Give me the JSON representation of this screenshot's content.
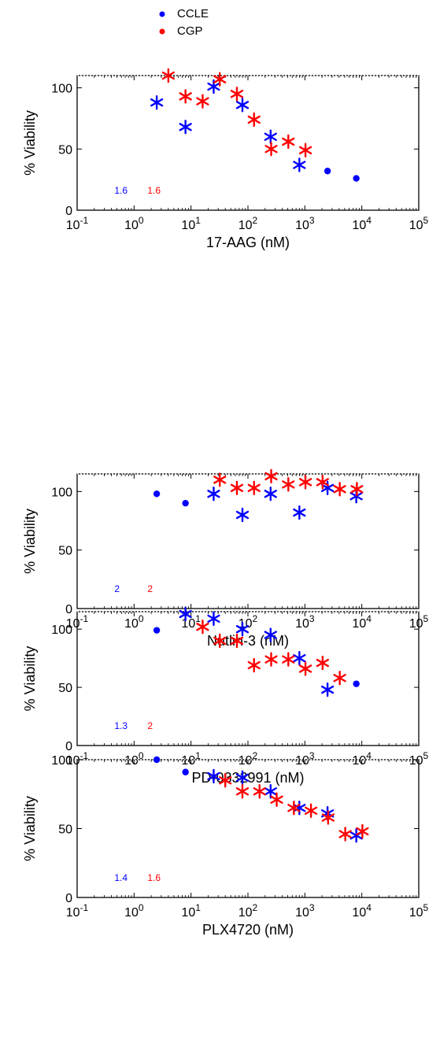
{
  "legend": {
    "placement": "top-left",
    "entries": [
      {
        "label": "CCLE",
        "color": "#0000ff"
      },
      {
        "label": "CGP",
        "color": "#ff0000"
      }
    ]
  },
  "chart_data": [
    {
      "type": "scatter",
      "xlabel": "17-AAG (nM)",
      "ylabel": "% Viability",
      "xscale": "log",
      "xlim": [
        0.1,
        100000
      ],
      "ylim": [
        0,
        110
      ],
      "xticks": [
        "10^-1",
        "10^0",
        "10^1",
        "10^2",
        "10^3",
        "10^4",
        "10^5"
      ],
      "yticks": [
        0,
        50,
        100
      ],
      "annotations": [
        {
          "text": "1.6",
          "color": "#0000ff"
        },
        {
          "text": "1.6",
          "color": "#ff0000"
        }
      ],
      "series": [
        {
          "name": "CCLE",
          "color": "#0000ff",
          "points": [
            {
              "x": 2.5,
              "y": 88,
              "marker": "star"
            },
            {
              "x": 8,
              "y": 68,
              "marker": "star"
            },
            {
              "x": 25,
              "y": 101,
              "marker": "star"
            },
            {
              "x": 80,
              "y": 86,
              "marker": "star"
            },
            {
              "x": 250,
              "y": 60,
              "marker": "star"
            },
            {
              "x": 800,
              "y": 37,
              "marker": "star"
            },
            {
              "x": 2500,
              "y": 32,
              "marker": "dot"
            },
            {
              "x": 8000,
              "y": 26,
              "marker": "dot"
            }
          ]
        },
        {
          "name": "CGP",
          "color": "#ff0000",
          "points": [
            {
              "x": 4,
              "y": 110,
              "marker": "star"
            },
            {
              "x": 8,
              "y": 93,
              "marker": "star"
            },
            {
              "x": 16,
              "y": 89,
              "marker": "star"
            },
            {
              "x": 32,
              "y": 107,
              "marker": "star"
            },
            {
              "x": 64,
              "y": 95,
              "marker": "star"
            },
            {
              "x": 128,
              "y": 74,
              "marker": "star"
            },
            {
              "x": 256,
              "y": 50,
              "marker": "star"
            },
            {
              "x": 512,
              "y": 56,
              "marker": "star"
            },
            {
              "x": 1024,
              "y": 49,
              "marker": "star"
            }
          ]
        }
      ]
    },
    {
      "type": "scatter",
      "xlabel": "Nutlin-3 (nM)",
      "ylabel": "% Viability",
      "xscale": "log",
      "xlim": [
        0.1,
        100000
      ],
      "ylim": [
        0,
        115
      ],
      "xticks": [
        "10^-1",
        "10^0",
        "10^1",
        "10^2",
        "10^3",
        "10^4",
        "10^5"
      ],
      "yticks": [
        0,
        50,
        100
      ],
      "annotations": [
        {
          "text": "2",
          "color": "#0000ff"
        },
        {
          "text": "2",
          "color": "#ff0000"
        }
      ],
      "series": [
        {
          "name": "CCLE",
          "color": "#0000ff",
          "points": [
            {
              "x": 2.5,
              "y": 98,
              "marker": "dot"
            },
            {
              "x": 8,
              "y": 90,
              "marker": "dot"
            },
            {
              "x": 25,
              "y": 98,
              "marker": "star"
            },
            {
              "x": 80,
              "y": 80,
              "marker": "star"
            },
            {
              "x": 250,
              "y": 98,
              "marker": "star"
            },
            {
              "x": 800,
              "y": 82,
              "marker": "star"
            },
            {
              "x": 2500,
              "y": 103,
              "marker": "star"
            },
            {
              "x": 8000,
              "y": 96,
              "marker": "star"
            }
          ]
        },
        {
          "name": "CGP",
          "color": "#ff0000",
          "points": [
            {
              "x": 32,
              "y": 110,
              "marker": "star"
            },
            {
              "x": 64,
              "y": 103,
              "marker": "star"
            },
            {
              "x": 128,
              "y": 103,
              "marker": "star"
            },
            {
              "x": 256,
              "y": 113,
              "marker": "star"
            },
            {
              "x": 512,
              "y": 106,
              "marker": "star"
            },
            {
              "x": 1024,
              "y": 108,
              "marker": "star"
            },
            {
              "x": 2048,
              "y": 108,
              "marker": "star"
            },
            {
              "x": 4096,
              "y": 102,
              "marker": "star"
            },
            {
              "x": 8192,
              "y": 102,
              "marker": "star"
            }
          ]
        }
      ]
    },
    {
      "type": "scatter",
      "xlabel": "PD-0332991 (nM)",
      "ylabel": "% Viability",
      "xscale": "log",
      "xlim": [
        0.1,
        100000
      ],
      "ylim": [
        0,
        115
      ],
      "xticks": [
        "10^-1",
        "10^0",
        "10^1",
        "10^2",
        "10^3",
        "10^4",
        "10^5"
      ],
      "yticks": [
        0,
        50,
        100
      ],
      "annotations": [
        {
          "text": "1.3",
          "color": "#0000ff"
        },
        {
          "text": "2",
          "color": "#ff0000"
        }
      ],
      "series": [
        {
          "name": "CCLE",
          "color": "#0000ff",
          "points": [
            {
              "x": 2.5,
              "y": 99,
              "marker": "dot"
            },
            {
              "x": 8,
              "y": 113,
              "marker": "star"
            },
            {
              "x": 25,
              "y": 109,
              "marker": "star"
            },
            {
              "x": 80,
              "y": 100,
              "marker": "star"
            },
            {
              "x": 250,
              "y": 95,
              "marker": "star"
            },
            {
              "x": 800,
              "y": 75,
              "marker": "star"
            },
            {
              "x": 2500,
              "y": 48,
              "marker": "star"
            },
            {
              "x": 8000,
              "y": 53,
              "marker": "dot"
            }
          ]
        },
        {
          "name": "CGP",
          "color": "#ff0000",
          "points": [
            {
              "x": 16,
              "y": 102,
              "marker": "star"
            },
            {
              "x": 32,
              "y": 90,
              "marker": "star"
            },
            {
              "x": 64,
              "y": 90,
              "marker": "star"
            },
            {
              "x": 128,
              "y": 69,
              "marker": "star"
            },
            {
              "x": 256,
              "y": 74,
              "marker": "star"
            },
            {
              "x": 512,
              "y": 74,
              "marker": "star"
            },
            {
              "x": 1024,
              "y": 66,
              "marker": "star"
            },
            {
              "x": 2048,
              "y": 71,
              "marker": "star"
            },
            {
              "x": 4096,
              "y": 58,
              "marker": "star"
            }
          ]
        }
      ]
    },
    {
      "type": "scatter",
      "xlabel": "PLX4720 (nM)",
      "ylabel": "% Viability",
      "xscale": "log",
      "xlim": [
        0.1,
        100000
      ],
      "ylim": [
        0,
        100
      ],
      "xticks": [
        "10^-1",
        "10^0",
        "10^1",
        "10^2",
        "10^3",
        "10^4",
        "10^5"
      ],
      "yticks": [
        0,
        50,
        100
      ],
      "annotations": [
        {
          "text": "1.4",
          "color": "#0000ff"
        },
        {
          "text": "1.6",
          "color": "#ff0000"
        }
      ],
      "series": [
        {
          "name": "CCLE",
          "color": "#0000ff",
          "points": [
            {
              "x": 2.5,
              "y": 100,
              "marker": "dot"
            },
            {
              "x": 8,
              "y": 91,
              "marker": "dot"
            },
            {
              "x": 25,
              "y": 88,
              "marker": "star"
            },
            {
              "x": 80,
              "y": 87,
              "marker": "star"
            },
            {
              "x": 250,
              "y": 77,
              "marker": "star"
            },
            {
              "x": 800,
              "y": 65,
              "marker": "star"
            },
            {
              "x": 2500,
              "y": 61,
              "marker": "star"
            },
            {
              "x": 8000,
              "y": 45,
              "marker": "star"
            }
          ]
        },
        {
          "name": "CGP",
          "color": "#ff0000",
          "points": [
            {
              "x": 40,
              "y": 85,
              "marker": "star"
            },
            {
              "x": 80,
              "y": 77,
              "marker": "star"
            },
            {
              "x": 160,
              "y": 77,
              "marker": "star"
            },
            {
              "x": 320,
              "y": 71,
              "marker": "star"
            },
            {
              "x": 640,
              "y": 65,
              "marker": "star"
            },
            {
              "x": 1280,
              "y": 63,
              "marker": "star"
            },
            {
              "x": 2560,
              "y": 58,
              "marker": "star"
            },
            {
              "x": 5120,
              "y": 46,
              "marker": "star"
            },
            {
              "x": 10240,
              "y": 48,
              "marker": "star"
            }
          ]
        }
      ]
    }
  ]
}
